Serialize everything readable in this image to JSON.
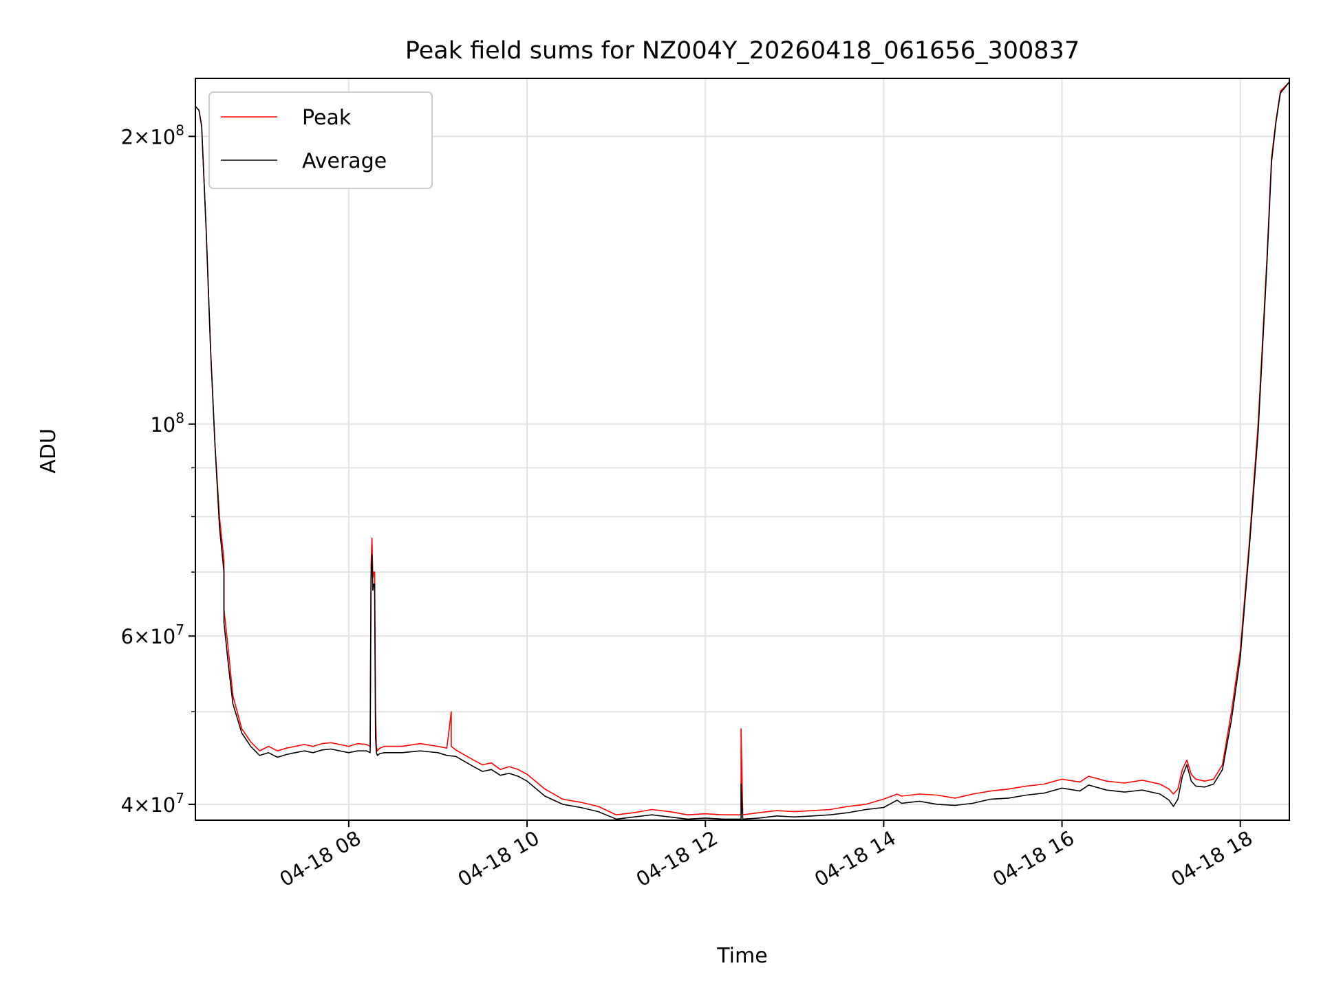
{
  "chart_data": {
    "type": "line",
    "title": "Peak field sums for NZ004Y_20260418_061656_300837",
    "xlabel": "Time",
    "ylabel": "ADU",
    "yscale": "log",
    "xlim": [
      6.28,
      18.55
    ],
    "ylim": [
      38500000,
      230000000
    ],
    "grid": true,
    "legend_position": "top-left",
    "x_ticks": [
      {
        "value": 8,
        "label": "04-18 08"
      },
      {
        "value": 10,
        "label": "04-18 10"
      },
      {
        "value": 12,
        "label": "04-18 12"
      },
      {
        "value": 14,
        "label": "04-18 14"
      },
      {
        "value": 16,
        "label": "04-18 16"
      },
      {
        "value": 18,
        "label": "04-18 18"
      }
    ],
    "y_major_ticks": [
      {
        "value": 40000000,
        "base": "4×10",
        "exp": "7"
      },
      {
        "value": 60000000,
        "base": "6×10",
        "exp": "7"
      },
      {
        "value": 100000000,
        "base": "10",
        "exp": "8"
      },
      {
        "value": 200000000,
        "base": "2×10",
        "exp": "8"
      }
    ],
    "y_minor_ticks": [
      50000000,
      70000000,
      80000000,
      90000000
    ],
    "series": [
      {
        "name": "Peak",
        "color": "#ff0000",
        "x": [
          6.28,
          6.32,
          6.35,
          6.4,
          6.45,
          6.5,
          6.55,
          6.6,
          6.6,
          6.6,
          6.65,
          6.7,
          6.8,
          6.9,
          7.0,
          7.1,
          7.2,
          7.3,
          7.4,
          7.5,
          7.6,
          7.7,
          7.8,
          7.9,
          8.0,
          8.1,
          8.2,
          8.24,
          8.25,
          8.26,
          8.27,
          8.28,
          8.29,
          8.3,
          8.31,
          8.32,
          8.35,
          8.4,
          8.6,
          8.8,
          9.0,
          9.1,
          9.15,
          9.15,
          9.2,
          9.4,
          9.5,
          9.6,
          9.7,
          9.8,
          9.9,
          10.0,
          10.2,
          10.4,
          10.6,
          10.8,
          11.0,
          11.2,
          11.4,
          11.6,
          11.8,
          12.0,
          12.2,
          12.4,
          12.4,
          12.42,
          12.6,
          12.8,
          13.0,
          13.2,
          13.4,
          13.6,
          13.8,
          14.0,
          14.15,
          14.2,
          14.4,
          14.6,
          14.8,
          15.0,
          15.2,
          15.4,
          15.6,
          15.8,
          16.0,
          16.2,
          16.3,
          16.5,
          16.7,
          16.9,
          17.1,
          17.2,
          17.25,
          17.3,
          17.35,
          17.4,
          17.45,
          17.5,
          17.6,
          17.7,
          17.8,
          17.9,
          18.0,
          18.1,
          18.2,
          18.3,
          18.35,
          18.4,
          18.45,
          18.55
        ],
        "y": [
          215000000,
          213000000,
          205000000,
          160000000,
          120000000,
          95000000,
          80000000,
          72000000,
          66000000,
          64000000,
          58000000,
          52000000,
          48000000,
          46500000,
          45500000,
          46000000,
          45500000,
          45800000,
          46000000,
          46200000,
          46000000,
          46300000,
          46400000,
          46200000,
          46000000,
          46300000,
          46200000,
          46000000,
          71000000,
          76000000,
          69000000,
          70000000,
          70000000,
          50000000,
          46000000,
          45500000,
          45800000,
          46000000,
          46000000,
          46300000,
          46000000,
          45800000,
          50000000,
          46000000,
          45600000,
          44500000,
          44000000,
          44200000,
          43500000,
          43800000,
          43500000,
          43000000,
          41500000,
          40500000,
          40200000,
          39800000,
          39000000,
          39200000,
          39500000,
          39300000,
          39000000,
          39100000,
          39000000,
          39000000,
          48000000,
          39000000,
          39200000,
          39400000,
          39300000,
          39400000,
          39500000,
          39800000,
          40000000,
          40500000,
          41000000,
          40800000,
          41000000,
          40900000,
          40600000,
          41000000,
          41300000,
          41500000,
          41800000,
          42000000,
          42500000,
          42200000,
          42800000,
          42300000,
          42100000,
          42400000,
          42000000,
          41500000,
          41000000,
          41500000,
          43500000,
          44500000,
          43000000,
          42500000,
          42300000,
          42500000,
          44000000,
          50000000,
          58000000,
          75000000,
          100000000,
          150000000,
          190000000,
          208000000,
          223000000,
          228000000
        ]
      },
      {
        "name": "Average",
        "color": "#000000",
        "x": [
          6.28,
          6.32,
          6.35,
          6.4,
          6.45,
          6.5,
          6.55,
          6.6,
          6.6,
          6.65,
          6.7,
          6.8,
          6.9,
          7.0,
          7.1,
          7.2,
          7.3,
          7.4,
          7.5,
          7.6,
          7.7,
          7.8,
          7.9,
          8.0,
          8.1,
          8.2,
          8.24,
          8.25,
          8.26,
          8.27,
          8.28,
          8.29,
          8.3,
          8.31,
          8.32,
          8.35,
          8.4,
          8.6,
          8.8,
          9.0,
          9.1,
          9.2,
          9.4,
          9.5,
          9.6,
          9.7,
          9.8,
          9.9,
          10.0,
          10.2,
          10.4,
          10.6,
          10.8,
          11.0,
          11.2,
          11.4,
          11.6,
          11.8,
          12.0,
          12.2,
          12.4,
          12.4,
          12.42,
          12.6,
          12.8,
          13.0,
          13.2,
          13.4,
          13.6,
          13.8,
          14.0,
          14.15,
          14.2,
          14.4,
          14.6,
          14.8,
          15.0,
          15.2,
          15.4,
          15.6,
          15.8,
          16.0,
          16.2,
          16.3,
          16.5,
          16.7,
          16.9,
          17.1,
          17.2,
          17.25,
          17.3,
          17.35,
          17.4,
          17.45,
          17.5,
          17.6,
          17.7,
          17.8,
          17.9,
          18.0,
          18.1,
          18.2,
          18.3,
          18.35,
          18.4,
          18.45,
          18.55
        ],
        "y": [
          215000000,
          213000000,
          205000000,
          160000000,
          120000000,
          95000000,
          78000000,
          70000000,
          62000000,
          56000000,
          51000000,
          47500000,
          46000000,
          45000000,
          45300000,
          44800000,
          45100000,
          45300000,
          45500000,
          45300000,
          45600000,
          45700000,
          45500000,
          45300000,
          45500000,
          45500000,
          45300000,
          69000000,
          73000000,
          67000000,
          68000000,
          68000000,
          47000000,
          45300000,
          45000000,
          45200000,
          45300000,
          45300000,
          45500000,
          45300000,
          45000000,
          44900000,
          43800000,
          43300000,
          43500000,
          42900000,
          43100000,
          42800000,
          42300000,
          40800000,
          40000000,
          39700000,
          39300000,
          38600000,
          38800000,
          39000000,
          38800000,
          38600000,
          38700000,
          38600000,
          38600000,
          42000000,
          38600000,
          38700000,
          38900000,
          38800000,
          38900000,
          39000000,
          39200000,
          39500000,
          39700000,
          40400000,
          40100000,
          40300000,
          40000000,
          39900000,
          40100000,
          40500000,
          40600000,
          40900000,
          41100000,
          41600000,
          41300000,
          41900000,
          41400000,
          41200000,
          41400000,
          41000000,
          40400000,
          39800000,
          40500000,
          42800000,
          44000000,
          42300000,
          41800000,
          41700000,
          42000000,
          43500000,
          49000000,
          57000000,
          74000000,
          98000000,
          148000000,
          188000000,
          207000000,
          222000000,
          228000000
        ]
      }
    ]
  }
}
